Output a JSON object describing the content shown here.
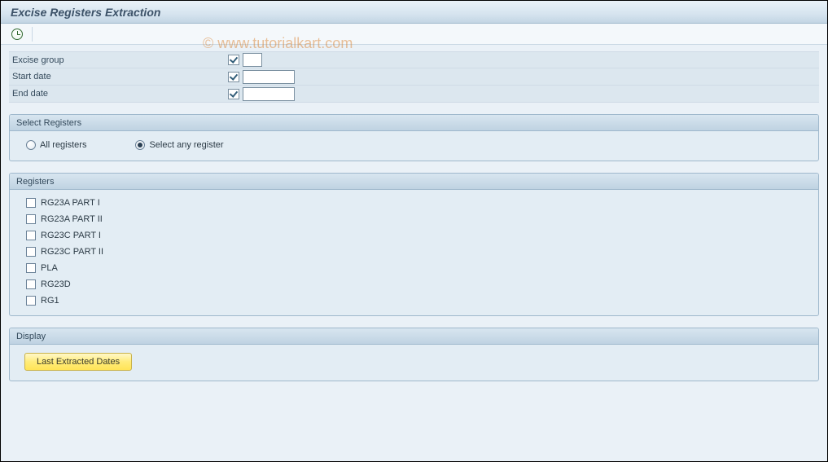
{
  "title": "Excise Registers Extraction",
  "watermark": "© www.tutorialkart.com",
  "toolbar": {
    "execute_icon": "clock-icon"
  },
  "form": {
    "fields": [
      {
        "label": "Excise group",
        "has_check": true,
        "input_width": "w1",
        "value": ""
      },
      {
        "label": "Start date",
        "has_check": true,
        "input_width": "w2",
        "value": ""
      },
      {
        "label": "End date",
        "has_check": true,
        "input_width": "w2",
        "value": ""
      }
    ]
  },
  "select_registers": {
    "title": "Select Registers",
    "options": [
      {
        "label": "All registers",
        "selected": false
      },
      {
        "label": "Select any register",
        "selected": true
      }
    ]
  },
  "registers": {
    "title": "Registers",
    "items": [
      {
        "label": "RG23A PART I",
        "checked": false
      },
      {
        "label": "RG23A PART II",
        "checked": false
      },
      {
        "label": "RG23C PART I",
        "checked": false
      },
      {
        "label": "RG23C PART II",
        "checked": false
      },
      {
        "label": "PLA",
        "checked": false
      },
      {
        "label": "RG23D",
        "checked": false
      },
      {
        "label": "RG1",
        "checked": false
      }
    ]
  },
  "display": {
    "title": "Display",
    "button_label": "Last Extracted Dates"
  },
  "colors": {
    "page_bg": "#eaf1f7",
    "title_gradient_top": "#eaf2f8",
    "title_gradient_bottom": "#c3d5e4",
    "group_border": "#9fb8cc",
    "group_bg": "#e3edf4",
    "group_header_top": "#d8e6f0",
    "group_header_bottom": "#bfd3e2",
    "form_row_bg": "#dce7ef",
    "button_bg_top": "#fff8c9",
    "button_bg_bottom": "#ffe457",
    "button_border": "#c9b24a",
    "watermark_color": "#d8781f"
  }
}
